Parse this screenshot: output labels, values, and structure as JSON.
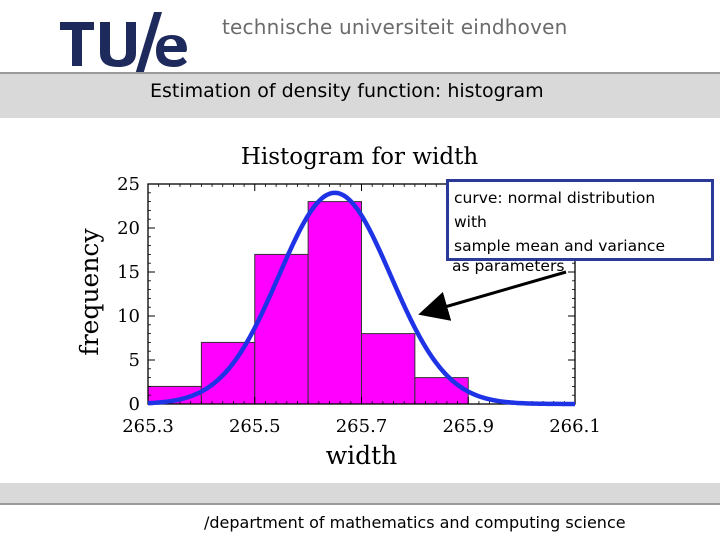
{
  "header": {
    "university_name": "technische universiteit eindhoven",
    "logo_text": "TU/e"
  },
  "slide": {
    "title": "Estimation of density function: histogram"
  },
  "callout": {
    "line1": "curve: normal distribution",
    "line2": "with",
    "line3": "sample mean and variance",
    "line4": "as parameters"
  },
  "footer": {
    "text": "/department of mathematics and computing science"
  },
  "colors": {
    "bar_fill": "#ff00ff",
    "curve": "#1f33e6",
    "callout_border": "#2b3a99",
    "logo": "#1f2a5c",
    "band": "#d9d9d9"
  },
  "chart_data": {
    "type": "bar",
    "title": "Histogram for width",
    "xlabel": "width",
    "ylabel": "frequency",
    "xlim": [
      265.3,
      266.1
    ],
    "ylim": [
      0,
      25
    ],
    "x_ticks": [
      "265.3",
      "265.5",
      "265.7",
      "265.9",
      "266.1"
    ],
    "y_ticks": [
      "0",
      "5",
      "10",
      "15",
      "20",
      "25"
    ],
    "bins": [
      {
        "from": 265.3,
        "to": 265.4,
        "value": 2
      },
      {
        "from": 265.4,
        "to": 265.5,
        "value": 7
      },
      {
        "from": 265.5,
        "to": 265.6,
        "value": 17
      },
      {
        "from": 265.6,
        "to": 265.7,
        "value": 23
      },
      {
        "from": 265.7,
        "to": 265.8,
        "value": 8
      },
      {
        "from": 265.8,
        "to": 265.9,
        "value": 3
      }
    ],
    "overlay_curve": {
      "type": "normal",
      "mean": 265.65,
      "sd": 0.105,
      "peak": 24
    }
  }
}
